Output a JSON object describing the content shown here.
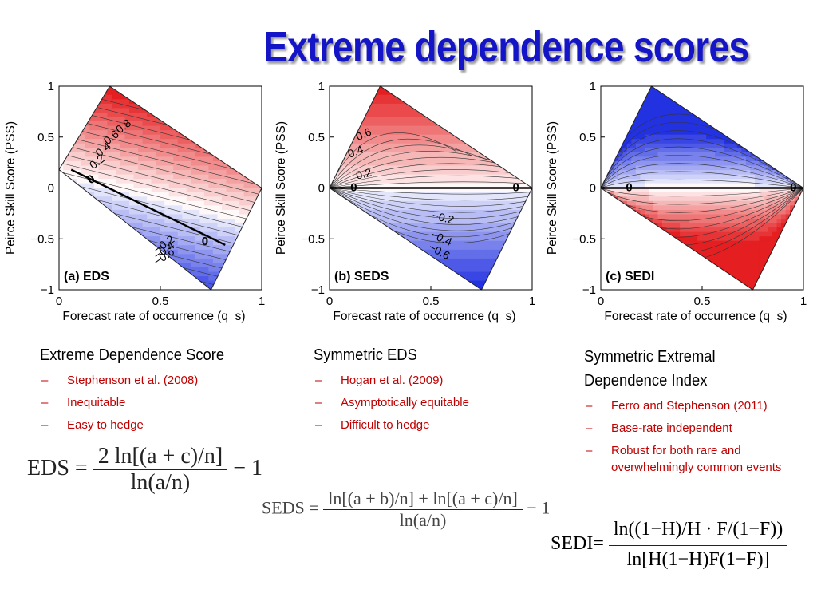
{
  "title": "Extreme dependence scores",
  "chart_data": [
    {
      "type": "contour",
      "panel_label": "(a) EDS",
      "xlabel": "Forecast rate of occurrence (q_s)",
      "ylabel": "Peirce Skill Score (PSS)",
      "xlim": [
        0,
        1
      ],
      "ylim": [
        -1,
        1
      ],
      "xticks": [
        "0",
        "0.5",
        "1"
      ],
      "yticks": [
        "−1",
        "−0.5",
        "0",
        "0.5",
        "1"
      ],
      "contour_labels": [
        "0.8",
        "0.6",
        "0.4",
        "0.2",
        "0",
        "0",
        "−0.2",
        "−0.4",
        "−0.6"
      ],
      "positive_color": "#e41a1c",
      "negative_color": "#1f2ee0"
    },
    {
      "type": "contour",
      "panel_label": "(b) SEDS",
      "xlabel": "Forecast rate of occurrence (q_s)",
      "ylabel": "Peirce Skill Score (PSS)",
      "xlim": [
        0,
        1
      ],
      "ylim": [
        -1,
        1
      ],
      "xticks": [
        "0",
        "0.5",
        "1"
      ],
      "yticks": [
        "−1",
        "−0.5",
        "0",
        "0.5",
        "1"
      ],
      "contour_labels": [
        "0.6",
        "0.4",
        "0.2",
        "0",
        "0",
        "−0.2",
        "−0.4",
        "−0.6"
      ],
      "positive_color": "#e41a1c",
      "negative_color": "#1f2ee0"
    },
    {
      "type": "contour",
      "panel_label": "(c) SEDI",
      "xlabel": "Forecast rate of occurrence (q_s)",
      "ylabel": "Peirce Skill Score (PSS)",
      "xlim": [
        0,
        1
      ],
      "ylim": [
        -1,
        1
      ],
      "xticks": [
        "0",
        "0.5",
        "1"
      ],
      "yticks": [
        "−1",
        "−0.5",
        "0",
        "0.5",
        "1"
      ],
      "contour_labels": [
        "0",
        "0"
      ],
      "positive_color": "#e41a1c",
      "negative_color": "#1f2ee0"
    }
  ],
  "columns": [
    {
      "heading": "Extreme Dependence Score",
      "items": [
        "Stephenson et al. (2008)",
        "Inequitable",
        "Easy to hedge"
      ]
    },
    {
      "heading": "Symmetric EDS",
      "items": [
        "Hogan et al. (2009)",
        "Asymptotically equitable",
        "Difficult to hedge"
      ]
    },
    {
      "heading": "Symmetric Extremal Dependence Index",
      "items": [
        "Ferro and Stephenson (2011)",
        "Base-rate independent",
        "Robust for both rare and overwhelmingly common events"
      ]
    }
  ],
  "bullet_dash": "–",
  "formulas": {
    "eds": {
      "lhs": "EDS =",
      "num": "2 ln[(a + c)/n]",
      "den": "ln(a/n)",
      "tail": "− 1"
    },
    "seds": {
      "lhs": "SEDS =",
      "num": "ln[(a + b)/n] + ln[(a + c)/n]",
      "den": "ln(a/n)",
      "tail": "− 1"
    },
    "sedi": {
      "lhs": "SEDI=",
      "num": "ln((1−H)/H · F/(1−F))",
      "den": "ln[H(1−H)F(1−F)]"
    }
  },
  "colors": {
    "title": "#1515c8",
    "bullet_text": "#c00000"
  }
}
